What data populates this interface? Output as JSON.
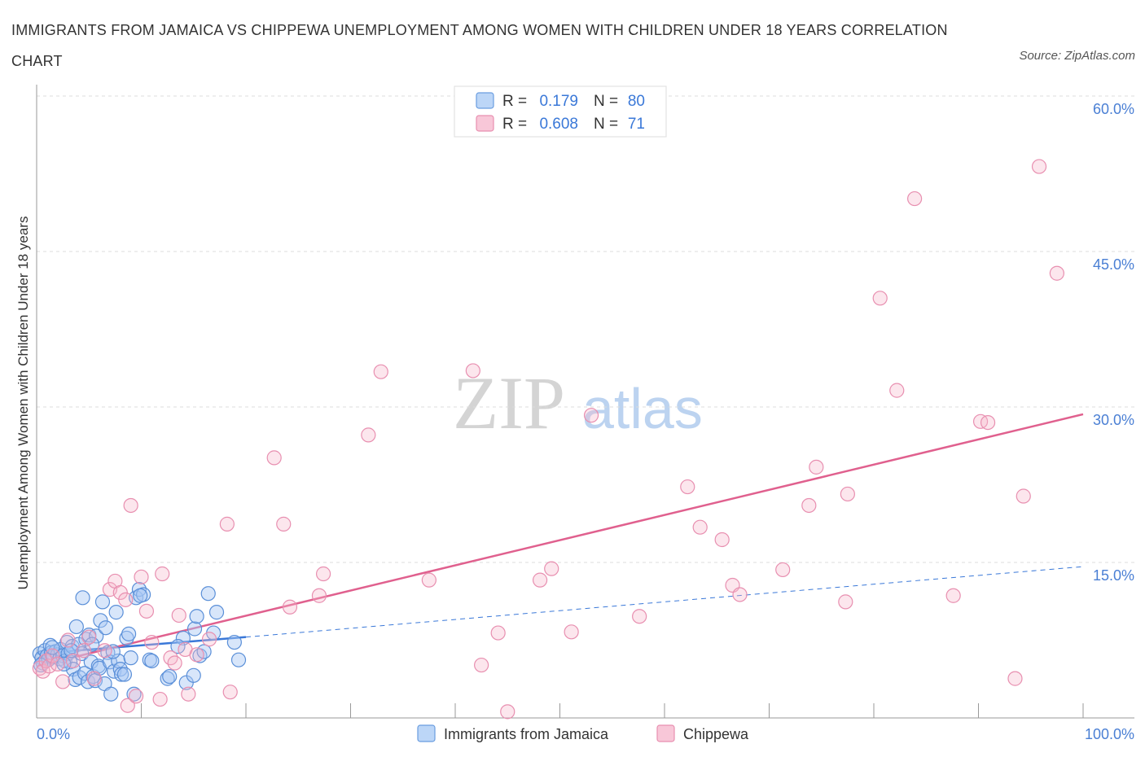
{
  "title": "IMMIGRANTS FROM JAMAICA VS CHIPPEWA UNEMPLOYMENT AMONG WOMEN WITH CHILDREN UNDER 18 YEARS CORRELATION CHART",
  "source": "Source: ZipAtlas.com",
  "watermark": {
    "zip": "ZIP",
    "atlas": "atlas"
  },
  "legend": {
    "rows": [
      {
        "r_label": "R =",
        "r_value": "0.179",
        "n_label": "N =",
        "n_value": "80"
      },
      {
        "r_label": "R =",
        "r_value": "0.608",
        "n_label": "N =",
        "n_value": "71"
      }
    ]
  },
  "bottom_legend": [
    "Immigrants from Jamaica",
    "Chippewa"
  ],
  "colors": {
    "blue": "#3a78d8",
    "blue_fill": "#a8c8f4",
    "pink": "#e0608e",
    "pink_fill": "#f5b8cc",
    "grid": "#dddddd",
    "tick": "#4a7fd4"
  },
  "chart_data": {
    "type": "scatter",
    "ylabel": "Unemployment Among Women with Children Under 18 years",
    "xlim": [
      0,
      100
    ],
    "ylim": [
      0,
      60
    ],
    "x_tick_labels": [
      "0.0%",
      "100.0%"
    ],
    "y_ticks": [
      15,
      30,
      45,
      60
    ],
    "y_tick_labels": [
      "15.0%",
      "30.0%",
      "45.0%",
      "60.0%"
    ],
    "grid": true,
    "legend_position": "top-center",
    "series": [
      {
        "name": "Immigrants from Jamaica",
        "color": "#3a78d8",
        "trend": {
          "solid": [
            [
              0,
              6.2
            ],
            [
              20,
              7.8
            ]
          ],
          "dashed": [
            [
              20,
              7.8
            ],
            [
              100,
              14.6
            ]
          ]
        },
        "points": [
          [
            0.3,
            6.2
          ],
          [
            0.5,
            5.8
          ],
          [
            0.6,
            5.3
          ],
          [
            0.8,
            6.5
          ],
          [
            1.0,
            6.0
          ],
          [
            1.1,
            5.6
          ],
          [
            1.3,
            7.0
          ],
          [
            1.4,
            6.3
          ],
          [
            1.6,
            5.9
          ],
          [
            1.8,
            6.4
          ],
          [
            2.0,
            6.1
          ],
          [
            2.2,
            5.7
          ],
          [
            2.3,
            6.6
          ],
          [
            2.5,
            6.0
          ],
          [
            2.7,
            5.5
          ],
          [
            2.9,
            7.3
          ],
          [
            3.0,
            6.2
          ],
          [
            3.2,
            5.4
          ],
          [
            3.4,
            6.9
          ],
          [
            3.5,
            4.7
          ],
          [
            3.7,
            3.7
          ],
          [
            3.8,
            8.8
          ],
          [
            4.0,
            7.1
          ],
          [
            4.1,
            3.9
          ],
          [
            4.3,
            6.2
          ],
          [
            4.4,
            11.6
          ],
          [
            4.6,
            4.3
          ],
          [
            4.7,
            7.6
          ],
          [
            4.9,
            3.5
          ],
          [
            5.0,
            8.0
          ],
          [
            5.2,
            5.4
          ],
          [
            5.4,
            4.0
          ],
          [
            5.6,
            3.6
          ],
          [
            5.7,
            7.9
          ],
          [
            5.9,
            5.0
          ],
          [
            6.0,
            4.8
          ],
          [
            6.1,
            9.4
          ],
          [
            6.3,
            11.2
          ],
          [
            6.5,
            3.3
          ],
          [
            6.6,
            8.7
          ],
          [
            6.8,
            6.3
          ],
          [
            7.0,
            5.4
          ],
          [
            7.1,
            2.3
          ],
          [
            7.4,
            4.5
          ],
          [
            7.6,
            10.2
          ],
          [
            7.8,
            5.5
          ],
          [
            8.0,
            4.7
          ],
          [
            8.1,
            4.2
          ],
          [
            8.4,
            4.2
          ],
          [
            8.6,
            7.7
          ],
          [
            8.8,
            8.1
          ],
          [
            9.0,
            5.8
          ],
          [
            9.3,
            2.3
          ],
          [
            9.5,
            11.6
          ],
          [
            9.8,
            12.4
          ],
          [
            10.2,
            11.9
          ],
          [
            10.8,
            5.6
          ],
          [
            11.0,
            5.5
          ],
          [
            12.5,
            3.8
          ],
          [
            12.7,
            4.0
          ],
          [
            14.0,
            7.7
          ],
          [
            14.3,
            3.4
          ],
          [
            15.0,
            4.1
          ],
          [
            15.1,
            8.6
          ],
          [
            15.3,
            9.8
          ],
          [
            15.6,
            6.0
          ],
          [
            16.0,
            6.4
          ],
          [
            16.4,
            12.0
          ],
          [
            16.9,
            8.2
          ],
          [
            17.2,
            10.2
          ],
          [
            0.4,
            5.1
          ],
          [
            1.5,
            6.8
          ],
          [
            2.6,
            5.2
          ],
          [
            3.3,
            6.5
          ],
          [
            5.3,
            7.1
          ],
          [
            7.3,
            6.4
          ],
          [
            9.9,
            11.8
          ],
          [
            13.5,
            6.9
          ],
          [
            18.9,
            7.3
          ],
          [
            19.3,
            5.6
          ]
        ]
      },
      {
        "name": "Chippewa",
        "color": "#e0608e",
        "trend": {
          "solid": [
            [
              0,
              5.0
            ],
            [
              100,
              29.3
            ]
          ]
        },
        "points": [
          [
            0.3,
            4.8
          ],
          [
            0.6,
            4.5
          ],
          [
            0.9,
            5.5
          ],
          [
            1.2,
            5.0
          ],
          [
            1.5,
            6.0
          ],
          [
            2.0,
            5.2
          ],
          [
            2.5,
            3.5
          ],
          [
            3.0,
            7.5
          ],
          [
            3.5,
            5.5
          ],
          [
            4.5,
            6.5
          ],
          [
            5.0,
            7.8
          ],
          [
            5.5,
            3.8
          ],
          [
            6.5,
            6.5
          ],
          [
            7.0,
            12.4
          ],
          [
            7.5,
            13.2
          ],
          [
            8.0,
            12.1
          ],
          [
            8.5,
            11.4
          ],
          [
            8.7,
            1.2
          ],
          [
            9.0,
            20.5
          ],
          [
            9.5,
            2.1
          ],
          [
            10.0,
            13.6
          ],
          [
            10.5,
            10.3
          ],
          [
            11.0,
            7.3
          ],
          [
            11.8,
            1.8
          ],
          [
            12.0,
            13.9
          ],
          [
            12.8,
            5.8
          ],
          [
            13.2,
            5.3
          ],
          [
            13.6,
            9.9
          ],
          [
            14.2,
            6.6
          ],
          [
            14.5,
            2.3
          ],
          [
            15.3,
            6.1
          ],
          [
            16.5,
            7.6
          ],
          [
            18.5,
            2.5
          ],
          [
            18.2,
            18.7
          ],
          [
            22.7,
            25.1
          ],
          [
            23.6,
            18.7
          ],
          [
            24.2,
            10.7
          ],
          [
            27.0,
            11.8
          ],
          [
            27.4,
            13.9
          ],
          [
            31.7,
            27.3
          ],
          [
            32.9,
            33.4
          ],
          [
            37.5,
            13.3
          ],
          [
            41.7,
            33.5
          ],
          [
            42.5,
            5.1
          ],
          [
            44.1,
            8.2
          ],
          [
            45.0,
            0.6
          ],
          [
            48.1,
            13.3
          ],
          [
            49.2,
            14.4
          ],
          [
            51.1,
            8.3
          ],
          [
            53.0,
            29.2
          ],
          [
            57.6,
            9.8
          ],
          [
            62.2,
            22.3
          ],
          [
            63.4,
            18.4
          ],
          [
            65.5,
            17.2
          ],
          [
            66.5,
            12.8
          ],
          [
            67.2,
            11.9
          ],
          [
            71.3,
            14.3
          ],
          [
            73.8,
            20.5
          ],
          [
            74.5,
            24.2
          ],
          [
            77.5,
            21.6
          ],
          [
            77.3,
            11.2
          ],
          [
            80.6,
            40.5
          ],
          [
            82.2,
            31.6
          ],
          [
            83.9,
            50.1
          ],
          [
            87.6,
            11.8
          ],
          [
            90.2,
            28.6
          ],
          [
            90.9,
            28.5
          ],
          [
            93.5,
            3.8
          ],
          [
            94.3,
            21.4
          ],
          [
            95.8,
            53.2
          ],
          [
            97.5,
            42.9
          ]
        ]
      }
    ]
  }
}
